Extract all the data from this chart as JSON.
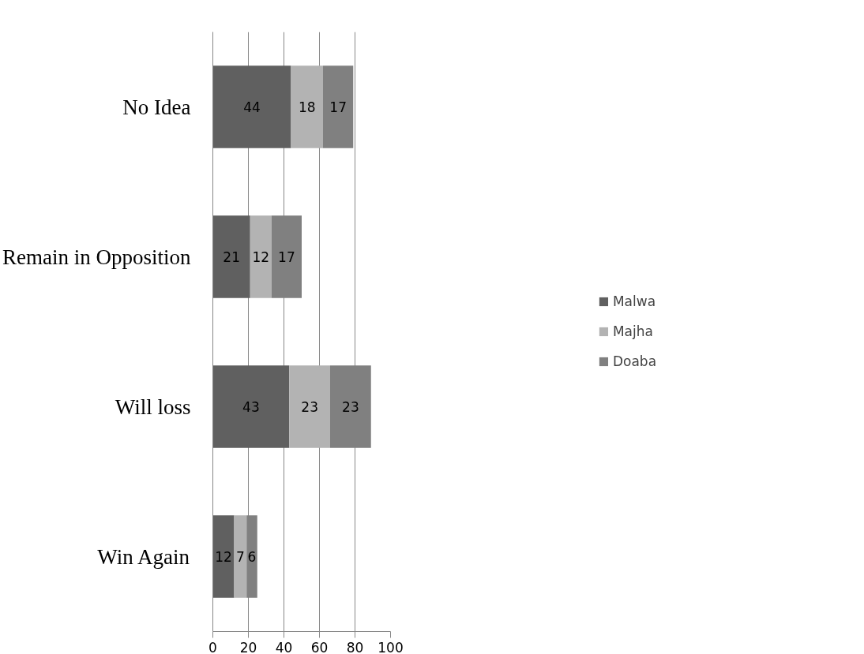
{
  "chart_data": {
    "type": "bar",
    "orientation": "horizontal",
    "stacked": true,
    "categories": [
      "No Idea",
      "Remain in Opposition",
      "Will loss",
      "Win Again"
    ],
    "series": [
      {
        "name": "Malwa",
        "color": "#606060",
        "values": [
          44,
          21,
          43,
          12
        ]
      },
      {
        "name": "Majha",
        "color": "#b3b3b3",
        "values": [
          18,
          12,
          23,
          7
        ]
      },
      {
        "name": "Doaba",
        "color": "#808080",
        "values": [
          17,
          17,
          23,
          6
        ]
      }
    ],
    "xlim": [
      0,
      100
    ],
    "xticks": [
      0,
      20,
      40,
      60,
      80,
      100
    ],
    "grid": "x",
    "legend": "right",
    "data_labels": true
  }
}
